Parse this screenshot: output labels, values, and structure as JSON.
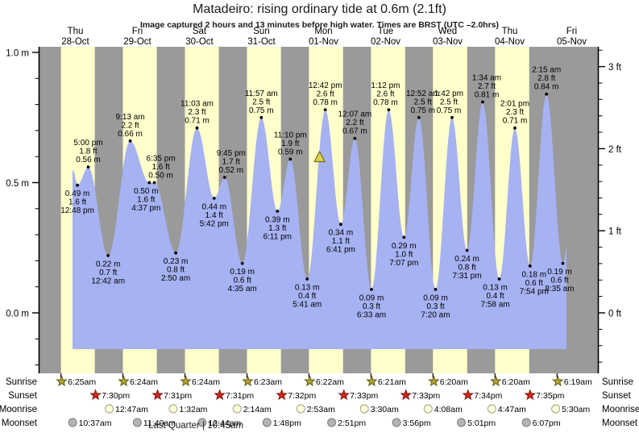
{
  "title": "Matadeiro: rising  ordinary tide at 0.6m (2.1ft)",
  "subtitle": "Image captured 2 hours and 13 minutes before high water. Times are BRST (UTC –2.0hrs)",
  "colors": {
    "day_band": "#ffffcc",
    "night_band": "#9a9a9a",
    "tide_fill": "#a6b2f2",
    "date_text": "#cc1f1f",
    "event_dot": "#000000",
    "marker_triangle": "#ded24a",
    "marker_triangle_border": "#72701f",
    "sunrise_star": "#b2a431",
    "sunset_star": "#d2281e",
    "moonrise_circle": "#ffffd8",
    "moonset_circle": "#b4b4b4"
  },
  "chart_data": {
    "type": "area",
    "title": "Matadeiro: rising  ordinary tide at 0.6m (2.1ft)",
    "ylabel_left": "meters",
    "ylabel_right": "feet",
    "ylim_m": [
      0.0,
      1.0
    ],
    "ylim_ft": [
      0,
      3
    ],
    "grid": false,
    "x_range_days": 9,
    "days": [
      {
        "name": "Thu",
        "date": "28-Oct"
      },
      {
        "name": "Fri",
        "date": "29-Oct"
      },
      {
        "name": "Sat",
        "date": "30-Oct"
      },
      {
        "name": "Sun",
        "date": "31-Oct"
      },
      {
        "name": "Mon",
        "date": "01-Nov"
      },
      {
        "name": "Tue",
        "date": "02-Nov"
      },
      {
        "name": "Wed",
        "date": "03-Nov"
      },
      {
        "name": "Thu",
        "date": "04-Nov"
      },
      {
        "name": "Fri",
        "date": "05-Nov"
      }
    ],
    "left_axis_ticks": [
      {
        "label": "1.0 m",
        "value_m": 1.0
      },
      {
        "label": "0.5 m",
        "value_m": 0.5
      },
      {
        "label": "0.0 m",
        "value_m": 0.0
      }
    ],
    "right_axis_ticks": [
      {
        "label": "3 ft",
        "value_ft": 3
      },
      {
        "label": "2 ft",
        "value_ft": 2
      },
      {
        "label": "1 ft",
        "value_ft": 1
      },
      {
        "label": "0 ft",
        "value_ft": 0
      }
    ],
    "tide_events": [
      {
        "day": 0,
        "time": "12:48 pm",
        "type": "low",
        "height_m": 0.49,
        "height_ft": 1.6
      },
      {
        "day": 0,
        "time": "5:00 pm",
        "type": "high",
        "height_m": 0.56,
        "height_ft": 1.8
      },
      {
        "day": 1,
        "time": "12:42 am",
        "type": "low",
        "height_m": 0.22,
        "height_ft": 0.7
      },
      {
        "day": 1,
        "time": "9:13 am",
        "type": "high",
        "height_m": 0.66,
        "height_ft": 2.2
      },
      {
        "day": 1,
        "time": "4:37 pm",
        "type": "low",
        "height_m": 0.5,
        "height_ft": 1.6,
        "label_dx": -4
      },
      {
        "day": 1,
        "time": "6:35 pm",
        "type": "high",
        "height_m": 0.5,
        "height_ft": 1.6,
        "label_dx": 8
      },
      {
        "day": 2,
        "time": "2:50 am",
        "type": "low",
        "height_m": 0.23,
        "height_ft": 0.8
      },
      {
        "day": 2,
        "time": "11:03 am",
        "type": "high",
        "height_m": 0.71,
        "height_ft": 2.3
      },
      {
        "day": 2,
        "time": "5:42 pm",
        "type": "low",
        "height_m": 0.44,
        "height_ft": 1.4
      },
      {
        "day": 2,
        "time": "9:45 pm",
        "type": "high",
        "height_m": 0.52,
        "height_ft": 1.7,
        "label_dx": 8
      },
      {
        "day": 3,
        "time": "4:35 am",
        "type": "low",
        "height_m": 0.19,
        "height_ft": 0.6
      },
      {
        "day": 3,
        "time": "11:57 am",
        "type": "high",
        "height_m": 0.75,
        "height_ft": 2.5
      },
      {
        "day": 3,
        "time": "6:11 pm",
        "type": "low",
        "height_m": 0.39,
        "height_ft": 1.3
      },
      {
        "day": 3,
        "time": "11:10 pm",
        "type": "high",
        "height_m": 0.59,
        "height_ft": 1.9
      },
      {
        "day": 4,
        "time": "5:41 am",
        "type": "low",
        "height_m": 0.13,
        "height_ft": 0.4
      },
      {
        "day": 4,
        "time": "12:42 pm",
        "type": "high",
        "height_m": 0.78,
        "height_ft": 2.6
      },
      {
        "day": 4,
        "time": "6:41 pm",
        "type": "low",
        "height_m": 0.34,
        "height_ft": 1.1
      },
      {
        "day": 5,
        "time": "12:07 am",
        "type": "high",
        "height_m": 0.67,
        "height_ft": 2.2
      },
      {
        "day": 5,
        "time": "6:33 am",
        "type": "low",
        "height_m": 0.09,
        "height_ft": 0.3
      },
      {
        "day": 5,
        "time": "1:12 pm",
        "type": "high",
        "height_m": 0.78,
        "height_ft": 2.6,
        "label_dx": -4
      },
      {
        "day": 5,
        "time": "7:07 pm",
        "type": "low",
        "height_m": 0.29,
        "height_ft": 1.0
      },
      {
        "day": 6,
        "time": "12:52 am",
        "type": "high",
        "height_m": 0.75,
        "height_ft": 2.5,
        "label_dx": 5
      },
      {
        "day": 6,
        "time": "7:20 am",
        "type": "low",
        "height_m": 0.09,
        "height_ft": 0.3
      },
      {
        "day": 6,
        "time": "1:42 pm",
        "type": "high",
        "height_m": 0.75,
        "height_ft": 2.5,
        "label_dx": -4
      },
      {
        "day": 6,
        "time": "7:31 pm",
        "type": "low",
        "height_m": 0.24,
        "height_ft": 0.8
      },
      {
        "day": 7,
        "time": "1:34 am",
        "type": "high",
        "height_m": 0.81,
        "height_ft": 2.7,
        "label_dx": 5
      },
      {
        "day": 7,
        "time": "7:58 am",
        "type": "low",
        "height_m": 0.13,
        "height_ft": 0.4,
        "label_dx": -5
      },
      {
        "day": 7,
        "time": "2:01 pm",
        "type": "high",
        "height_m": 0.71,
        "height_ft": 2.3
      },
      {
        "day": 7,
        "time": "7:54 pm",
        "type": "low",
        "height_m": 0.18,
        "height_ft": 0.6,
        "label_dx": 5
      },
      {
        "day": 8,
        "time": "2:15 am",
        "type": "high",
        "height_m": 0.84,
        "height_ft": 2.8
      },
      {
        "day": 8,
        "time": "8:35 am",
        "type": "low",
        "height_m": 0.19,
        "height_ft": 0.6,
        "label_dx": -4
      }
    ],
    "current_marker": {
      "symbol": "triangle",
      "day_index": 4,
      "time": "10:29 am",
      "height_m": 0.6
    },
    "sun_moon_rows": [
      {
        "key": "sunrise",
        "label": "Sunrise",
        "icon": "star",
        "icon_name": "sunrise-star-icon",
        "entries": [
          {
            "day": 0,
            "time": "6:25am"
          },
          {
            "day": 1,
            "time": "6:24am"
          },
          {
            "day": 2,
            "time": "6:24am"
          },
          {
            "day": 3,
            "time": "6:23am"
          },
          {
            "day": 4,
            "time": "6:22am"
          },
          {
            "day": 5,
            "time": "6:21am"
          },
          {
            "day": 6,
            "time": "6:20am"
          },
          {
            "day": 7,
            "time": "6:20am"
          },
          {
            "day": 8,
            "time": "6:19am"
          }
        ]
      },
      {
        "key": "sunset",
        "label": "Sunset",
        "icon": "star",
        "icon_name": "sunset-star-icon",
        "entries": [
          {
            "day": 0,
            "time": "7:30pm"
          },
          {
            "day": 1,
            "time": "7:31pm"
          },
          {
            "day": 2,
            "time": "7:31pm"
          },
          {
            "day": 3,
            "time": "7:32pm"
          },
          {
            "day": 4,
            "time": "7:33pm"
          },
          {
            "day": 5,
            "time": "7:33pm"
          },
          {
            "day": 6,
            "time": "7:34pm"
          },
          {
            "day": 7,
            "time": "7:35pm"
          }
        ]
      },
      {
        "key": "moonrise",
        "label": "Moonrise",
        "icon": "circle",
        "icon_name": "moonrise-circle-icon",
        "entries": [
          {
            "day": 1,
            "time": "12:47am"
          },
          {
            "day": 2,
            "time": "1:32am"
          },
          {
            "day": 3,
            "time": "2:14am"
          },
          {
            "day": 4,
            "time": "2:53am"
          },
          {
            "day": 5,
            "time": "3:30am"
          },
          {
            "day": 6,
            "time": "4:08am"
          },
          {
            "day": 7,
            "time": "4:47am"
          },
          {
            "day": 8,
            "time": "5:30am"
          }
        ]
      },
      {
        "key": "moonset",
        "label": "Moonset",
        "icon": "circle",
        "icon_name": "moonset-circle-icon",
        "entries": [
          {
            "day": 0,
            "time": "10:37am"
          },
          {
            "day": 1,
            "time": "11:40am"
          },
          {
            "day": 2,
            "time": "12:44pm"
          },
          {
            "day": 3,
            "time": "1:48pm"
          },
          {
            "day": 4,
            "time": "2:51pm"
          },
          {
            "day": 5,
            "time": "3:56pm"
          },
          {
            "day": 6,
            "time": "5:01pm"
          },
          {
            "day": 7,
            "time": "6:07pm"
          }
        ]
      }
    ],
    "moon_phase": "Last Quarter | 10:45am"
  }
}
